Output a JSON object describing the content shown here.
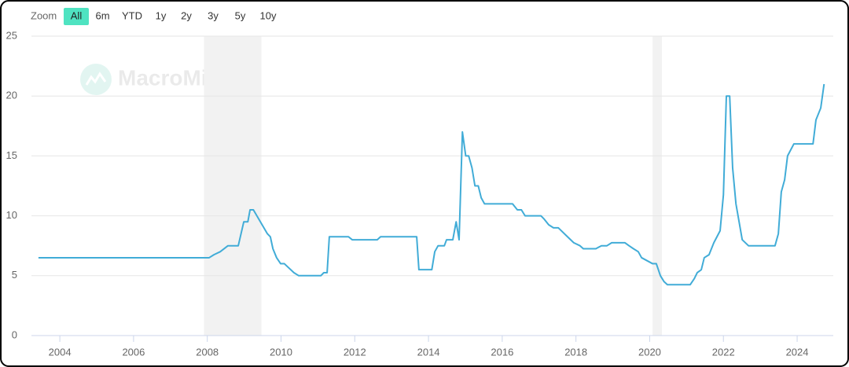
{
  "chart_data": {
    "type": "line",
    "range_selector": {
      "label": "Zoom",
      "buttons": [
        "All",
        "6m",
        "YTD",
        "1y",
        "2y",
        "3y",
        "5y",
        "10y"
      ],
      "active": 0,
      "active_color": "#4fe3c1"
    },
    "watermark": "MacroMicro",
    "x": [
      2003.42,
      2008.05,
      2008.18,
      2008.35,
      2008.56,
      2008.84,
      2008.99,
      2009.1,
      2009.16,
      2009.25,
      2009.63,
      2009.71,
      2009.78,
      2009.88,
      2009.99,
      2010.09,
      2010.35,
      2010.48,
      2011.08,
      2011.16,
      2011.25,
      2011.31,
      2011.83,
      2011.93,
      2012.61,
      2012.7,
      2013.68,
      2013.74,
      2014.09,
      2014.17,
      2014.26,
      2014.43,
      2014.49,
      2014.66,
      2014.75,
      2014.83,
      2014.92,
      2015.01,
      2015.09,
      2015.18,
      2015.26,
      2015.35,
      2015.43,
      2015.52,
      2016.28,
      2016.41,
      2016.52,
      2016.62,
      2017.05,
      2017.13,
      2017.26,
      2017.39,
      2017.52,
      2017.77,
      2017.94,
      2018.11,
      2018.2,
      2018.54,
      2018.69,
      2018.84,
      2018.97,
      2019.33,
      2019.44,
      2019.56,
      2019.69,
      2019.78,
      2020.08,
      2020.18,
      2020.29,
      2020.39,
      2020.48,
      2021.1,
      2021.21,
      2021.29,
      2021.4,
      2021.48,
      2021.61,
      2021.74,
      2021.91,
      2022.0,
      2022.08,
      2022.17,
      2022.25,
      2022.34,
      2022.51,
      2022.68,
      2023.4,
      2023.49,
      2023.57,
      2023.66,
      2023.74,
      2023.91,
      2024.43,
      2024.51,
      2024.64,
      2024.73
    ],
    "series": [
      {
        "color": "#41acd7",
        "values": [
          6.5,
          6.5,
          6.75,
          7.0,
          7.5,
          7.5,
          9.5,
          9.5,
          10.5,
          10.5,
          8.5,
          8.25,
          7.25,
          6.5,
          6.0,
          6.0,
          5.25,
          5.0,
          5.0,
          5.25,
          5.25,
          8.25,
          8.25,
          8.0,
          8.0,
          8.25,
          8.25,
          5.5,
          5.5,
          7.0,
          7.5,
          7.5,
          8.0,
          8.0,
          9.5,
          8.0,
          17.0,
          15.0,
          15.0,
          14.0,
          12.5,
          12.5,
          11.5,
          11.0,
          11.0,
          10.5,
          10.5,
          10.0,
          10.0,
          9.75,
          9.25,
          9.0,
          9.0,
          8.25,
          7.75,
          7.5,
          7.25,
          7.25,
          7.5,
          7.5,
          7.75,
          7.75,
          7.5,
          7.25,
          7.0,
          6.5,
          6.0,
          6.0,
          5.0,
          4.5,
          4.25,
          4.25,
          4.75,
          5.25,
          5.5,
          6.5,
          6.75,
          7.75,
          8.75,
          11.75,
          20.0,
          20.0,
          14.0,
          11.0,
          8.0,
          7.5,
          7.5,
          8.5,
          12.0,
          13.0,
          15.0,
          16.0,
          16.0,
          18.0,
          19.0,
          21.0
        ]
      }
    ],
    "shaded": [
      [
        2007.91,
        2009.47
      ],
      [
        2020.08,
        2020.33
      ]
    ],
    "shade_color": "#f2f2f2",
    "xlim": [
      2003.23,
      2024.98
    ],
    "xticks": [
      2004,
      2006,
      2008,
      2010,
      2012,
      2014,
      2016,
      2018,
      2020,
      2022,
      2024
    ],
    "ylim": [
      0,
      25
    ],
    "yticks": [
      0,
      5,
      10,
      15,
      20,
      25
    ],
    "grid": true
  }
}
